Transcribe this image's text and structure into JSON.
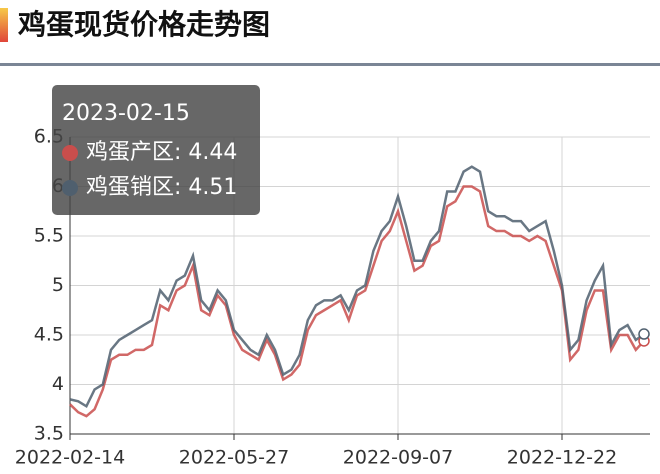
{
  "chart_data": {
    "type": "line",
    "title": "鸡蛋现货价格走势图",
    "categories": [
      "2022-02-14",
      null,
      null,
      null,
      null,
      null,
      null,
      null,
      null,
      null,
      null,
      null,
      null,
      null,
      null,
      null,
      null,
      null,
      null,
      null,
      "2022-05-27",
      null,
      null,
      null,
      null,
      null,
      null,
      null,
      null,
      null,
      null,
      null,
      null,
      null,
      null,
      null,
      null,
      null,
      null,
      null,
      "2022-09-07",
      null,
      null,
      null,
      null,
      null,
      null,
      null,
      null,
      null,
      null,
      null,
      null,
      null,
      null,
      null,
      null,
      null,
      null,
      null,
      "2022-12-22",
      null,
      null,
      null,
      null,
      null,
      null,
      null,
      null,
      null,
      null
    ],
    "series": [
      {
        "name": "鸡蛋产区",
        "color": "#c94e4c",
        "values": [
          3.8,
          3.72,
          3.68,
          3.75,
          3.95,
          4.25,
          4.3,
          4.3,
          4.35,
          4.35,
          4.4,
          4.8,
          4.75,
          4.95,
          5.0,
          5.2,
          4.75,
          4.7,
          4.9,
          4.8,
          4.5,
          4.35,
          4.3,
          4.25,
          4.45,
          4.3,
          4.05,
          4.1,
          4.2,
          4.55,
          4.7,
          4.75,
          4.8,
          4.85,
          4.65,
          4.9,
          4.95,
          5.2,
          5.45,
          5.55,
          5.75,
          5.45,
          5.15,
          5.2,
          5.4,
          5.45,
          5.8,
          5.85,
          6.0,
          6.0,
          5.95,
          5.6,
          5.55,
          5.55,
          5.5,
          5.5,
          5.45,
          5.5,
          5.45,
          5.2,
          4.95,
          4.25,
          4.35,
          4.75,
          4.95,
          4.95,
          4.35,
          4.5,
          4.5,
          4.35,
          4.44
        ]
      },
      {
        "name": "鸡蛋销区",
        "color": "#4f5f6e",
        "values": [
          3.85,
          3.83,
          3.78,
          3.95,
          4.0,
          4.35,
          4.45,
          4.5,
          4.55,
          4.6,
          4.65,
          4.95,
          4.85,
          5.05,
          5.1,
          5.3,
          4.85,
          4.75,
          4.95,
          4.85,
          4.55,
          4.45,
          4.35,
          4.3,
          4.5,
          4.35,
          4.1,
          4.15,
          4.3,
          4.65,
          4.8,
          4.85,
          4.85,
          4.9,
          4.75,
          4.95,
          5.0,
          5.35,
          5.55,
          5.65,
          5.9,
          5.6,
          5.25,
          5.25,
          5.45,
          5.55,
          5.95,
          5.95,
          6.15,
          6.2,
          6.15,
          5.75,
          5.7,
          5.7,
          5.65,
          5.65,
          5.55,
          5.6,
          5.65,
          5.35,
          5.0,
          4.35,
          4.45,
          4.85,
          5.05,
          5.2,
          4.4,
          4.55,
          4.6,
          4.45,
          4.51
        ]
      }
    ],
    "ylim": [
      3.5,
      6.5
    ],
    "yticks": [
      3.5,
      4,
      4.5,
      5,
      5.5,
      6,
      6.5
    ],
    "grid": true,
    "tooltip": {
      "title": "2023-02-15",
      "separator": ": "
    }
  }
}
